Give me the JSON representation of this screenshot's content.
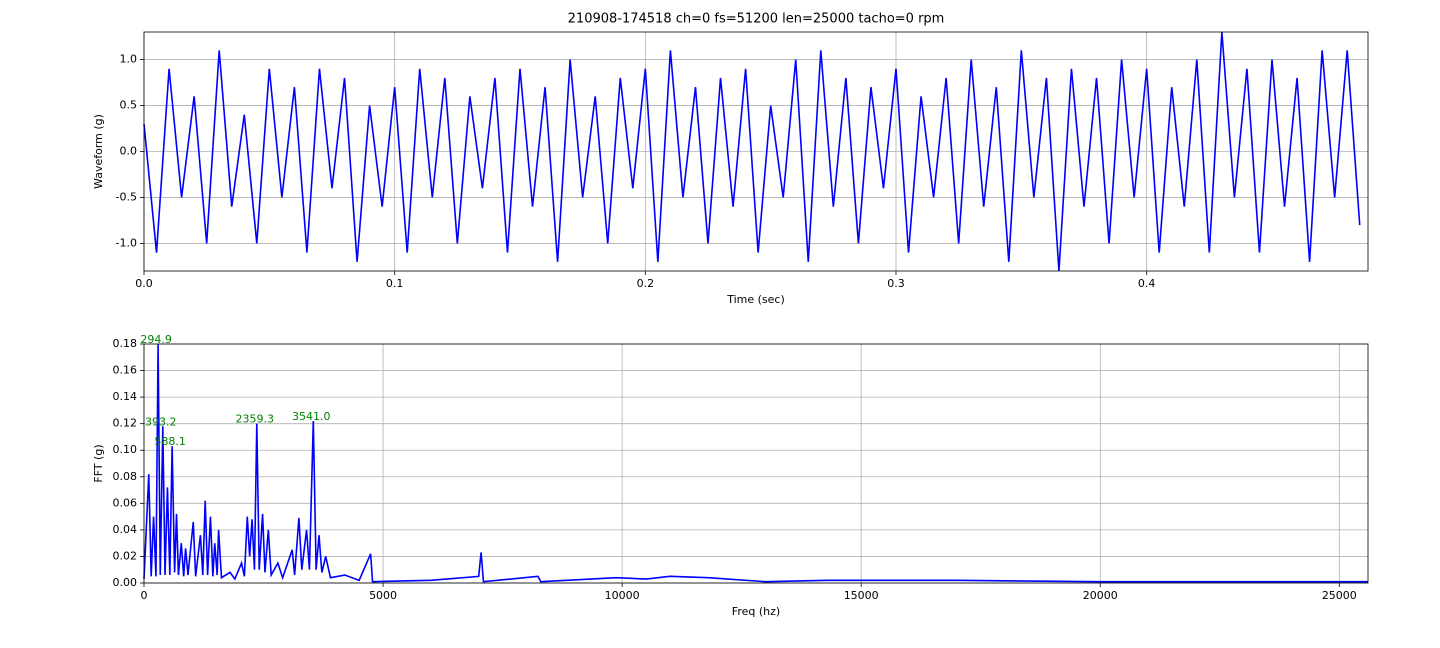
{
  "chart_data": [
    {
      "type": "line",
      "title": "210908-174518 ch=0 fs=51200 len=25000 tacho=0 rpm",
      "x_label": "Time (sec)",
      "y_label": "Waveform (g)",
      "grid": true,
      "xlim": [
        0,
        0.4883
      ],
      "ylim": [
        -1.3,
        1.3
      ],
      "xticks": [
        {
          "value": 0,
          "label": "0.0"
        },
        0.1,
        0.2,
        0.3,
        0.4
      ],
      "yticks": [
        {
          "value": -1,
          "label": "-1.0"
        },
        -0.5,
        {
          "value": 0,
          "label": "0.0"
        },
        0.5,
        {
          "value": 1,
          "label": "1.0"
        }
      ],
      "series": [
        {
          "name": "waveform",
          "color": "#0000ff",
          "x": [
            0,
            0.005,
            0.01,
            0.015,
            0.02,
            0.025,
            0.03,
            0.035,
            0.04,
            0.045,
            0.05,
            0.055,
            0.06,
            0.065,
            0.07,
            0.075,
            0.08,
            0.085,
            0.09,
            0.095,
            0.1,
            0.105,
            0.11,
            0.115,
            0.12,
            0.125,
            0.13,
            0.135,
            0.14,
            0.145,
            0.15,
            0.155,
            0.16,
            0.165,
            0.17,
            0.175,
            0.18,
            0.185,
            0.19,
            0.195,
            0.2,
            0.205,
            0.21,
            0.215,
            0.22,
            0.225,
            0.23,
            0.235,
            0.24,
            0.245,
            0.25,
            0.255,
            0.26,
            0.265,
            0.27,
            0.275,
            0.28,
            0.285,
            0.29,
            0.295,
            0.3,
            0.305,
            0.31,
            0.315,
            0.32,
            0.325,
            0.33,
            0.335,
            0.34,
            0.345,
            0.35,
            0.355,
            0.36,
            0.365,
            0.37,
            0.375,
            0.38,
            0.385,
            0.39,
            0.395,
            0.4,
            0.405,
            0.41,
            0.415,
            0.42,
            0.425,
            0.43,
            0.435,
            0.44,
            0.445,
            0.45,
            0.455,
            0.46,
            0.465,
            0.47,
            0.475,
            0.48,
            0.485
          ],
          "values": [
            0.3,
            -1.1,
            0.9,
            -0.5,
            0.6,
            -1.0,
            1.1,
            -0.6,
            0.4,
            -1.0,
            0.9,
            -0.5,
            0.7,
            -1.1,
            0.9,
            -0.4,
            0.8,
            -1.2,
            0.5,
            -0.6,
            0.7,
            -1.1,
            0.9,
            -0.5,
            0.8,
            -1.0,
            0.6,
            -0.4,
            0.8,
            -1.1,
            0.9,
            -0.6,
            0.7,
            -1.2,
            1.0,
            -0.5,
            0.6,
            -1.0,
            0.8,
            -0.4,
            0.9,
            -1.2,
            1.1,
            -0.5,
            0.7,
            -1.0,
            0.8,
            -0.6,
            0.9,
            -1.1,
            0.5,
            -0.5,
            1.0,
            -1.2,
            1.1,
            -0.6,
            0.8,
            -1.0,
            0.7,
            -0.4,
            0.9,
            -1.1,
            0.6,
            -0.5,
            0.8,
            -1.0,
            1.0,
            -0.6,
            0.7,
            -1.2,
            1.1,
            -0.5,
            0.8,
            -1.3,
            0.9,
            -0.6,
            0.8,
            -1.0,
            1.0,
            -0.5,
            0.9,
            -1.1,
            0.7,
            -0.6,
            1.0,
            -1.1,
            1.3,
            -0.5,
            0.9,
            -1.1,
            1.0,
            -0.6,
            0.8,
            -1.2,
            1.1,
            -0.5,
            1.1,
            -0.8
          ]
        }
      ]
    },
    {
      "type": "line",
      "x_label": "Freq (hz)",
      "y_label": "FFT (g)",
      "grid": true,
      "xlim": [
        0,
        25600
      ],
      "ylim": [
        0,
        0.18
      ],
      "xticks": [
        0,
        5000,
        10000,
        15000,
        20000,
        25000
      ],
      "yticks": [
        {
          "value": 0,
          "label": "0.00"
        },
        0.02,
        0.04,
        0.06,
        0.08,
        {
          "value": 0.1,
          "label": "0.10"
        },
        0.12,
        0.14,
        0.16,
        0.18
      ],
      "annotations": [
        {
          "label": "294.9",
          "x": 294.9,
          "y": 0.18
        },
        {
          "label": "393.2",
          "x": 393.2,
          "y": 0.118
        },
        {
          "label": "588.1",
          "x": 588.1,
          "y": 0.103
        },
        {
          "label": "2359.3",
          "x": 2359.3,
          "y": 0.12
        },
        {
          "label": "3541.0",
          "x": 3541.0,
          "y": 0.122
        }
      ],
      "series": [
        {
          "name": "fft",
          "color": "#0000ff",
          "x": [
            0,
            100,
            150,
            200,
            250,
            294.9,
            340,
            393.2,
            440,
            490,
            540,
            588.1,
            640,
            680,
            720,
            780,
            830,
            870,
            920,
            1030,
            1080,
            1180,
            1230,
            1280,
            1330,
            1390,
            1440,
            1480,
            1530,
            1560,
            1620,
            1800,
            1900,
            2040,
            2100,
            2160,
            2210,
            2260,
            2310,
            2359.3,
            2410,
            2480,
            2530,
            2600,
            2660,
            2800,
            2900,
            3100,
            3150,
            3240,
            3300,
            3400,
            3460,
            3541.0,
            3600,
            3660,
            3720,
            3800,
            3900,
            4200,
            4500,
            4740,
            4780,
            6000,
            7000,
            7050,
            7100,
            8240,
            8300,
            9880,
            10500,
            11000,
            11800,
            13000,
            14300,
            15500,
            17000,
            20000,
            25600
          ],
          "values": [
            0.003,
            0.082,
            0.005,
            0.05,
            0.005,
            0.18,
            0.006,
            0.118,
            0.006,
            0.072,
            0.006,
            0.103,
            0.008,
            0.052,
            0.006,
            0.03,
            0.005,
            0.026,
            0.006,
            0.046,
            0.005,
            0.036,
            0.006,
            0.062,
            0.006,
            0.05,
            0.005,
            0.03,
            0.006,
            0.04,
            0.004,
            0.008,
            0.003,
            0.015,
            0.005,
            0.05,
            0.02,
            0.048,
            0.01,
            0.12,
            0.01,
            0.052,
            0.008,
            0.04,
            0.006,
            0.015,
            0.004,
            0.025,
            0.006,
            0.049,
            0.01,
            0.04,
            0.01,
            0.122,
            0.01,
            0.036,
            0.008,
            0.02,
            0.004,
            0.006,
            0.002,
            0.022,
            0.001,
            0.002,
            0.005,
            0.023,
            0.001,
            0.005,
            0.001,
            0.004,
            0.003,
            0.005,
            0.004,
            0.001,
            0.002,
            0.002,
            0.002,
            0.001,
            0.001
          ]
        }
      ]
    }
  ]
}
